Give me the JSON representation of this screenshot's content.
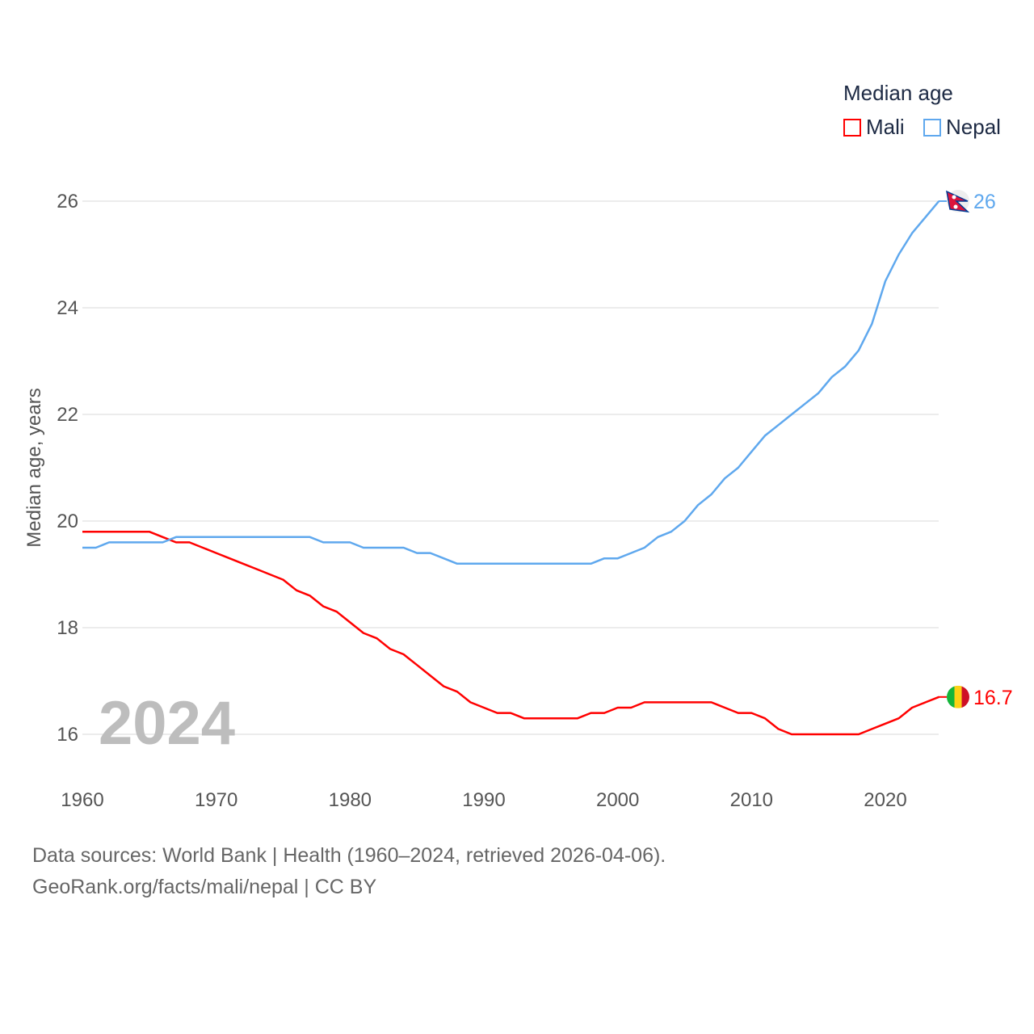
{
  "chart_data": {
    "type": "line",
    "title": "Median age",
    "xlabel": "",
    "ylabel": "Median age, years",
    "xlim": [
      1960,
      2024
    ],
    "ylim": [
      15.5,
      26.5
    ],
    "yticks": [
      16,
      18,
      20,
      22,
      24,
      26
    ],
    "xticks": [
      1960,
      1970,
      1980,
      1990,
      2000,
      2010,
      2020
    ],
    "grid": true,
    "legend_placement": "top-right",
    "year_label": "2024",
    "x": [
      1960,
      1961,
      1962,
      1963,
      1964,
      1965,
      1966,
      1967,
      1968,
      1969,
      1970,
      1971,
      1972,
      1973,
      1974,
      1975,
      1976,
      1977,
      1978,
      1979,
      1980,
      1981,
      1982,
      1983,
      1984,
      1985,
      1986,
      1987,
      1988,
      1989,
      1990,
      1991,
      1992,
      1993,
      1994,
      1995,
      1996,
      1997,
      1998,
      1999,
      2000,
      2001,
      2002,
      2003,
      2004,
      2005,
      2006,
      2007,
      2008,
      2009,
      2010,
      2011,
      2012,
      2013,
      2014,
      2015,
      2016,
      2017,
      2018,
      2019,
      2020,
      2021,
      2022,
      2023,
      2024
    ],
    "series": [
      {
        "name": "Mali",
        "color": "#ff0000",
        "end_label": "16.7",
        "values": [
          19.8,
          19.8,
          19.8,
          19.8,
          19.8,
          19.8,
          19.7,
          19.6,
          19.6,
          19.5,
          19.4,
          19.3,
          19.2,
          19.1,
          19.0,
          18.9,
          18.7,
          18.6,
          18.4,
          18.3,
          18.1,
          17.9,
          17.8,
          17.6,
          17.5,
          17.3,
          17.1,
          16.9,
          16.8,
          16.6,
          16.5,
          16.4,
          16.4,
          16.3,
          16.3,
          16.3,
          16.3,
          16.3,
          16.4,
          16.4,
          16.5,
          16.5,
          16.6,
          16.6,
          16.6,
          16.6,
          16.6,
          16.6,
          16.5,
          16.4,
          16.4,
          16.3,
          16.1,
          16.0,
          16.0,
          16.0,
          16.0,
          16.0,
          16.0,
          16.1,
          16.2,
          16.3,
          16.5,
          16.6,
          16.7
        ]
      },
      {
        "name": "Nepal",
        "color": "#5fa8ee",
        "end_label": "26",
        "values": [
          19.5,
          19.5,
          19.6,
          19.6,
          19.6,
          19.6,
          19.6,
          19.7,
          19.7,
          19.7,
          19.7,
          19.7,
          19.7,
          19.7,
          19.7,
          19.7,
          19.7,
          19.7,
          19.6,
          19.6,
          19.6,
          19.5,
          19.5,
          19.5,
          19.5,
          19.4,
          19.4,
          19.3,
          19.2,
          19.2,
          19.2,
          19.2,
          19.2,
          19.2,
          19.2,
          19.2,
          19.2,
          19.2,
          19.2,
          19.3,
          19.3,
          19.4,
          19.5,
          19.7,
          19.8,
          20.0,
          20.3,
          20.5,
          20.8,
          21.0,
          21.3,
          21.6,
          21.8,
          22.0,
          22.2,
          22.4,
          22.7,
          22.9,
          23.2,
          23.7,
          24.5,
          25.0,
          25.4,
          25.7,
          26.0
        ]
      }
    ]
  },
  "footer": {
    "line1": "Data sources: World Bank | Health (1960–2024, retrieved 2026-04-06).",
    "line2": "GeoRank.org/facts/mali/nepal | CC BY"
  }
}
